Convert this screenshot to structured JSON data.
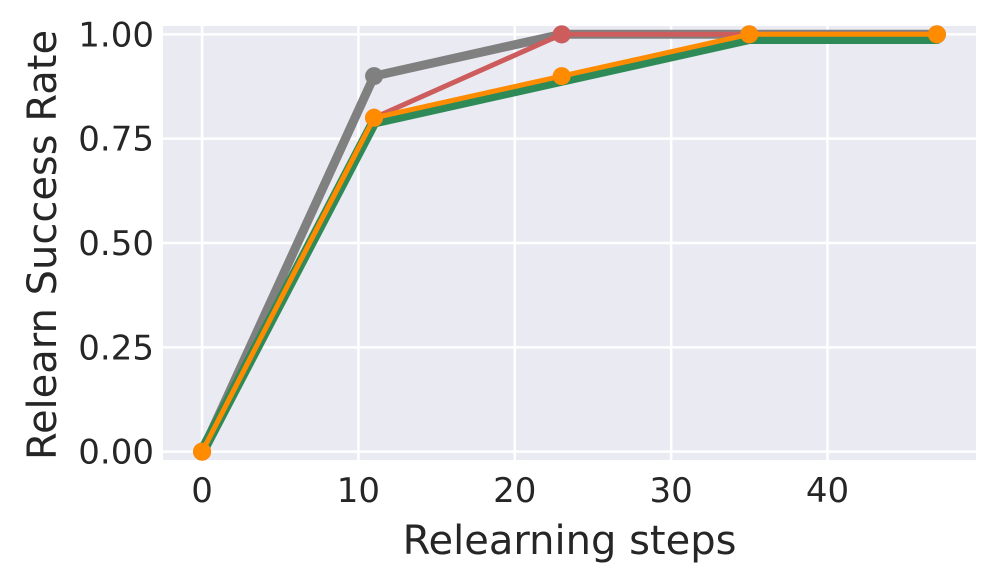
{
  "chart_data": {
    "type": "line",
    "title": "",
    "xlabel": "Relearning steps",
    "ylabel": "Relearn Success Rate",
    "xlim": [
      -2.5,
      49.5
    ],
    "ylim": [
      -0.02,
      1.02
    ],
    "x_ticks": [
      0,
      10,
      20,
      30,
      40
    ],
    "x_tick_labels": [
      "0",
      "10",
      "20",
      "30",
      "40"
    ],
    "y_ticks": [
      0,
      0.25,
      0.5,
      0.75,
      1.0
    ],
    "y_tick_labels": [
      "0.00",
      "0.25",
      "0.50",
      "0.75",
      "1.00"
    ],
    "grid": true,
    "legend": "none",
    "colors": {
      "plot_background": "#eaeaf2",
      "grid": "#ffffff",
      "text": "#262626"
    },
    "series": [
      {
        "x": [
          0,
          11,
          23,
          35,
          47
        ],
        "y": [
          0.0,
          0.9,
          1.0,
          1.0,
          1.0
        ],
        "color": "#808080",
        "line_width": 9,
        "marker_size": 9
      },
      {
        "x": [
          0,
          11,
          23,
          35,
          47
        ],
        "y": [
          0.0,
          0.8,
          1.0,
          1.0,
          1.0
        ],
        "color": "#cd5c5c",
        "line_width": 5,
        "marker_size": 9
      },
      {
        "x": [
          0,
          11,
          23,
          35,
          47
        ],
        "y": [
          0.0,
          0.79,
          0.89,
          0.99,
          0.99
        ],
        "color": "#2e8b57",
        "line_width": 11,
        "marker_size": 0
      },
      {
        "x": [
          0,
          11,
          23,
          35,
          47
        ],
        "y": [
          0.0,
          0.8,
          0.9,
          1.0,
          1.0
        ],
        "color": "#ff8c00",
        "line_width": 5,
        "marker_size": 9
      }
    ]
  }
}
